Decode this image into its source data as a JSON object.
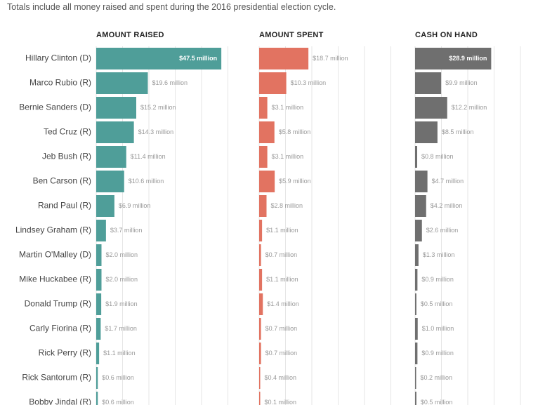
{
  "subtitle": "Totals include all money raised and spent during the 2016 presidential election cycle.",
  "colors": {
    "raised": "#4f9e99",
    "spent": "#e27361",
    "cash": "#6f6f6f",
    "label": "#444444",
    "value": "#999999",
    "grid": "#e6e6e6"
  },
  "chart_data": {
    "type": "bar",
    "orientation": "horizontal",
    "unit": "million",
    "categories": [
      "Hillary Clinton (D)",
      "Marco Rubio (R)",
      "Bernie Sanders (D)",
      "Ted Cruz (R)",
      "Jeb Bush (R)",
      "Ben Carson (R)",
      "Rand Paul (R)",
      "Lindsey Graham (R)",
      "Martin O'Malley (D)",
      "Mike Huckabee (R)",
      "Donald Trump (R)",
      "Carly Fiorina (R)",
      "Rick Perry (R)",
      "Rick Santorum (R)",
      "Bobby Jindal (R)"
    ],
    "series": [
      {
        "name": "AMOUNT RAISED",
        "values": [
          47.5,
          19.6,
          15.2,
          14.3,
          11.4,
          10.6,
          6.9,
          3.7,
          2.0,
          2.0,
          1.9,
          1.7,
          1.1,
          0.6,
          0.6
        ],
        "labels": [
          "$47.5 million",
          "$19.6 million",
          "$15.2 million",
          "$14.3 million",
          "$11.4 million",
          "$10.6 million",
          "$6.9 million",
          "$3.7 million",
          "$2.0 million",
          "$2.0 million",
          "$1.9 million",
          "$1.7 million",
          "$1.1 million",
          "$0.6 million",
          "$0.6 million"
        ]
      },
      {
        "name": "AMOUNT SPENT",
        "values": [
          18.7,
          10.3,
          3.1,
          5.8,
          3.1,
          5.9,
          2.8,
          1.1,
          0.7,
          1.1,
          1.4,
          0.7,
          0.7,
          0.4,
          0.1
        ],
        "labels": [
          "$18.7 million",
          "$10.3 million",
          "$3.1 million",
          "$5.8 million",
          "$3.1 million",
          "$5.9 million",
          "$2.8 million",
          "$1.1 million",
          "$0.7 million",
          "$1.1 million",
          "$1.4 million",
          "$0.7 million",
          "$0.7 million",
          "$0.4 million",
          "$0.1 million"
        ]
      },
      {
        "name": "CASH ON HAND",
        "values": [
          28.9,
          9.9,
          12.2,
          8.5,
          0.8,
          4.7,
          4.2,
          2.6,
          1.3,
          0.9,
          0.5,
          1.0,
          0.9,
          0.2,
          0.5
        ],
        "labels": [
          "$28.9 million",
          "$9.9 million",
          "$12.2 million",
          "$8.5 million",
          "$0.8 million",
          "$4.7 million",
          "$4.2 million",
          "$2.6 million",
          "$1.3 million",
          "$0.9 million",
          "$0.5 million",
          "$1.0 million",
          "$0.9 million",
          "$0.2 million",
          "$0.5 million"
        ]
      }
    ],
    "xlim": [
      0,
      50
    ],
    "grid": true,
    "legend": "none"
  }
}
